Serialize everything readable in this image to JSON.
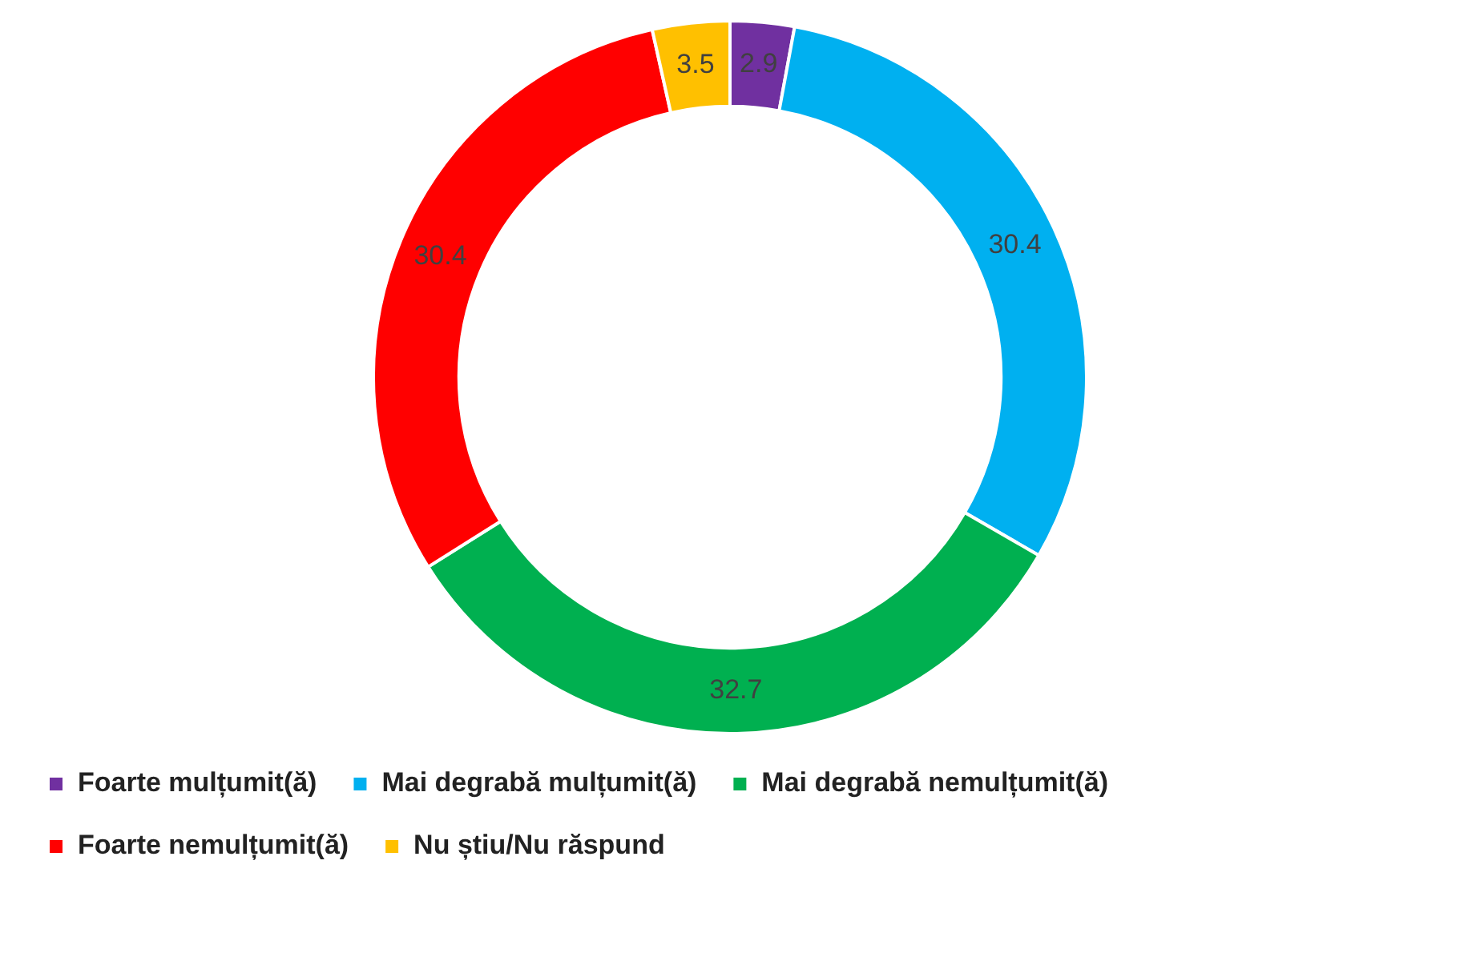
{
  "chart_data": {
    "type": "donut",
    "categories": [
      "Foarte mulțumit(ă)",
      "Mai degrabă mulțumit(ă)",
      "Mai degrabă nemulțumit(ă)",
      "Foarte nemulțumit(ă)",
      "Nu știu/Nu răspund"
    ],
    "values": [
      2.9,
      30.4,
      32.7,
      30.4,
      3.5
    ],
    "colors": [
      "#7030a0",
      "#00b0f0",
      "#00b050",
      "#ff0000",
      "#ffc000"
    ],
    "data_labels": true,
    "legend": "bottom"
  }
}
